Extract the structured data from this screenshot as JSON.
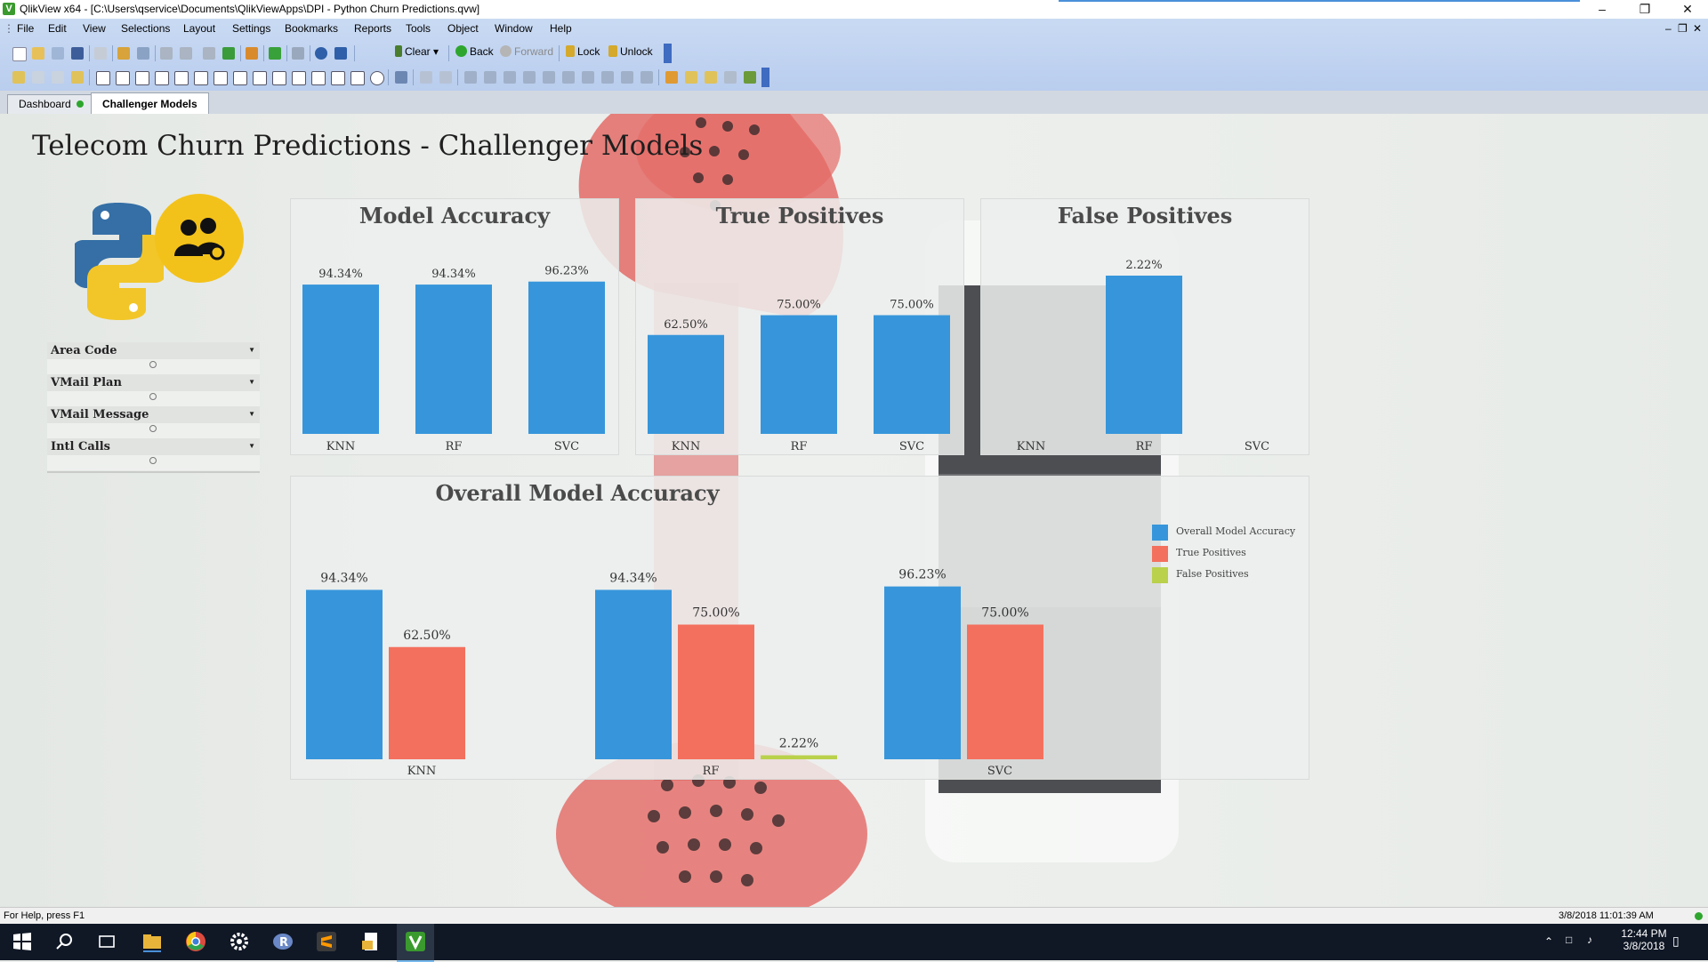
{
  "window": {
    "title": "QlikView x64 - [C:\\Users\\qservice\\Documents\\QlikViewApps\\DPI - Python Churn Predictions.qvw]",
    "app_logo": "V",
    "controls": [
      "minimize-icon",
      "restore-icon",
      "close-icon"
    ]
  },
  "menu": {
    "items": [
      "File",
      "Edit",
      "View",
      "Selections",
      "Layout",
      "Settings",
      "Bookmarks",
      "Reports",
      "Tools",
      "Object",
      "Window",
      "Help"
    ]
  },
  "toolbar": {
    "clear": "Clear",
    "back": "Back",
    "forward": "Forward",
    "lock": "Lock",
    "unlock": "Unlock"
  },
  "tabs": [
    {
      "label": "Dashboard",
      "active": false,
      "has_indicator": true
    },
    {
      "label": "Challenger Models",
      "active": true
    }
  ],
  "sheet": {
    "title": "Telecom Churn Predictions - Challenger Models"
  },
  "listboxes": [
    "Area Code",
    "VMail Plan",
    "VMail Message",
    "Intl Calls"
  ],
  "colors": {
    "blue": "#3796db",
    "salmon": "#f4705e",
    "green": "#b9d14b"
  },
  "chart_data": [
    {
      "type": "bar",
      "title": "Model Accuracy",
      "categories": [
        "KNN",
        "RF",
        "SVC"
      ],
      "values": [
        94.34,
        94.34,
        96.23
      ],
      "labels": [
        "94.34%",
        "94.34%",
        "96.23%"
      ]
    },
    {
      "type": "bar",
      "title": "True Positives",
      "categories": [
        "KNN",
        "RF",
        "SVC"
      ],
      "values": [
        62.5,
        75.0,
        75.0
      ],
      "labels": [
        "62.50%",
        "75.00%",
        "75.00%"
      ]
    },
    {
      "type": "bar",
      "title": "False Positives",
      "categories": [
        "KNN",
        "RF",
        "SVC"
      ],
      "values": [
        0,
        2.22,
        0
      ],
      "labels": [
        "",
        "2.22%",
        ""
      ]
    },
    {
      "type": "bar",
      "title": "Overall Model Accuracy",
      "categories": [
        "KNN",
        "RF",
        "SVC"
      ],
      "legend_position": "right",
      "series": [
        {
          "name": "Overall Model Accuracy",
          "color": "#3796db",
          "values": [
            94.34,
            94.34,
            96.23
          ],
          "labels": [
            "94.34%",
            "94.34%",
            "96.23%"
          ]
        },
        {
          "name": "True Positives",
          "color": "#f4705e",
          "values": [
            62.5,
            75.0,
            75.0
          ],
          "labels": [
            "62.50%",
            "75.00%",
            "75.00%"
          ]
        },
        {
          "name": "False Positives",
          "color": "#b9d14b",
          "values": [
            0,
            2.22,
            0
          ],
          "labels": [
            "",
            "2.22%",
            ""
          ]
        }
      ]
    }
  ],
  "status": {
    "help": "For Help, press F1",
    "datetime": "3/8/2018 11:01:39 AM"
  },
  "taskbar": {
    "time": "12:44 PM",
    "date": "3/8/2018"
  }
}
